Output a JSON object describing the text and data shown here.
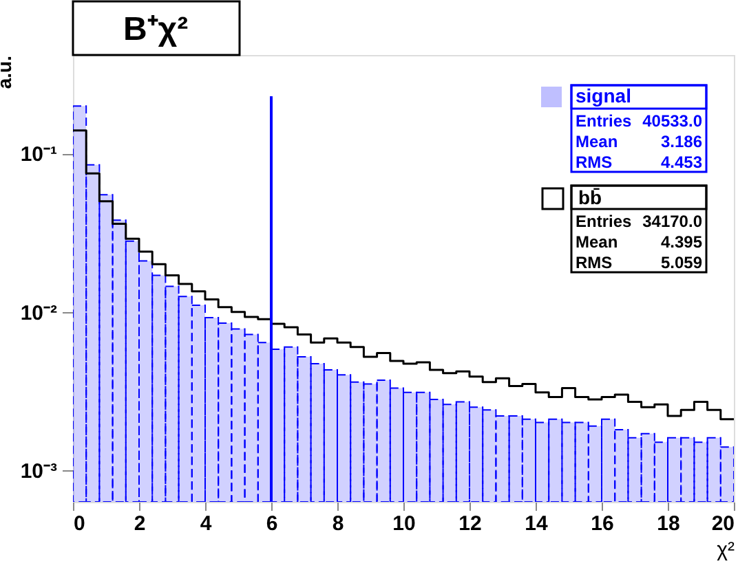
{
  "chart_data": {
    "type": "histogram",
    "title": "B⁺χ²",
    "xlabel": "χ²",
    "ylabel": "a.u.",
    "log": "y",
    "grid": false,
    "legend": "top right",
    "bins": [
      0,
      0.4,
      0.8,
      1.2,
      1.6,
      2,
      2.4,
      2.8,
      3.2,
      3.6,
      4,
      4.4,
      4.8,
      5.2,
      5.6,
      6,
      6.4,
      6.8,
      7.2,
      7.6,
      8,
      8.4,
      8.8,
      9.2,
      9.6,
      10,
      10.4,
      10.8,
      11.2,
      11.6,
      12,
      12.4,
      12.8,
      13.2,
      13.6,
      14,
      14.4,
      14.8,
      15.2,
      15.6,
      16,
      16.4,
      16.8,
      17.2,
      17.6,
      18,
      18.4,
      18.8,
      19.2,
      19.6,
      20
    ],
    "series": [
      {
        "name": "signal",
        "color": "#0000ff",
        "line_style": "dashed",
        "values": [
          0.2,
          0.085,
          0.055,
          0.038,
          0.028,
          0.021,
          0.017,
          0.0145,
          0.0125,
          0.011,
          0.0092,
          0.0085,
          0.0078,
          0.0072,
          0.0064,
          0.0058,
          0.006,
          0.0052,
          0.0047,
          0.0043,
          0.004,
          0.0036,
          0.0035,
          0.0037,
          0.0033,
          0.0031,
          0.0031,
          0.0028,
          0.0026,
          0.0027,
          0.0025,
          0.0024,
          0.0022,
          0.0022,
          0.0021,
          0.002,
          0.0021,
          0.002,
          0.002,
          0.0019,
          0.0021,
          0.0018,
          0.0016,
          0.0017,
          0.0015,
          0.0016,
          0.0016,
          0.0015,
          0.0016,
          0.0014
        ]
      },
      {
        "name": "bb̄",
        "color": "#000000",
        "line_style": "solid",
        "values": [
          0.14,
          0.075,
          0.05,
          0.036,
          0.029,
          0.024,
          0.02,
          0.017,
          0.015,
          0.0135,
          0.012,
          0.0107,
          0.01,
          0.0093,
          0.009,
          0.0084,
          0.008,
          0.0072,
          0.0064,
          0.0068,
          0.0064,
          0.006,
          0.0052,
          0.0055,
          0.0049,
          0.0047,
          0.0048,
          0.0043,
          0.0041,
          0.0042,
          0.0039,
          0.0036,
          0.0038,
          0.0034,
          0.0035,
          0.0031,
          0.0029,
          0.0033,
          0.0029,
          0.0028,
          0.0029,
          0.003,
          0.0027,
          0.0025,
          0.0026,
          0.0022,
          0.0024,
          0.0027,
          0.0024,
          0.0021
        ]
      }
    ],
    "xlim": [
      0,
      20
    ],
    "xticks": [
      0,
      2,
      4,
      6,
      8,
      10,
      12,
      14,
      16,
      18,
      20
    ],
    "ylim": [
      0.00063,
      0.42
    ],
    "yticks": [
      {
        "value": 0.001,
        "label": "10⁻³"
      },
      {
        "value": 0.01,
        "label": "10⁻²"
      },
      {
        "value": 0.1,
        "label": "10⁻¹"
      }
    ],
    "ref_lines": [
      {
        "axis": "x",
        "value": 6,
        "color": "#0000ff"
      }
    ],
    "annotations": [
      "Entries 40533.0",
      "Mean 3.186",
      "RMS 4.453",
      "Entries 34170.0",
      "Mean 4.395",
      "RMS 5.059"
    ]
  }
}
